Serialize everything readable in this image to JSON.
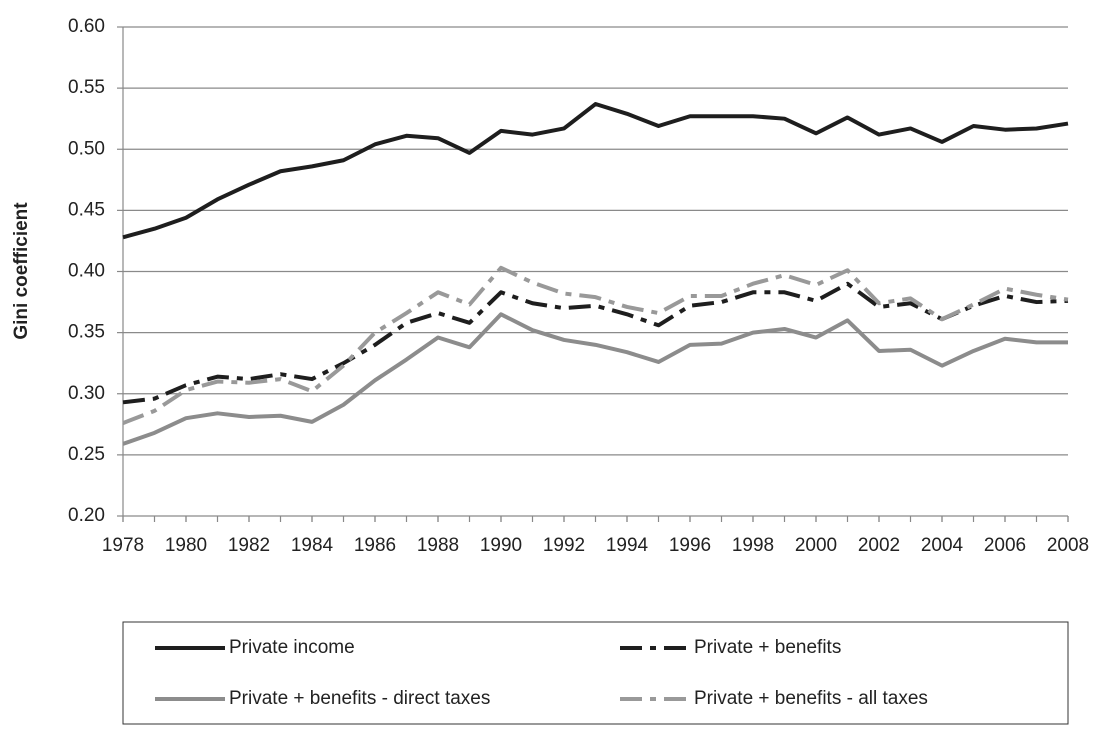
{
  "chart_data": {
    "type": "line",
    "y_label": "Gini coefficient",
    "x": [
      1978,
      1979,
      1980,
      1981,
      1982,
      1983,
      1984,
      1985,
      1986,
      1987,
      1988,
      1989,
      1990,
      1991,
      1992,
      1993,
      1994,
      1995,
      1996,
      1997,
      1998,
      1999,
      2000,
      2001,
      2002,
      2003,
      2004,
      2005,
      2006,
      2007,
      2008
    ],
    "xlim": [
      1978,
      2008
    ],
    "xticks": [
      1978,
      1980,
      1982,
      1984,
      1986,
      1988,
      1990,
      1992,
      1994,
      1996,
      1998,
      2000,
      2002,
      2004,
      2006,
      2008
    ],
    "ylim": [
      0.2,
      0.6
    ],
    "yticks": [
      {
        "value": 0.2,
        "label": "0.20"
      },
      {
        "value": 0.25,
        "label": "0.25"
      },
      {
        "value": 0.3,
        "label": "0.30"
      },
      {
        "value": 0.35,
        "label": "0.35"
      },
      {
        "value": 0.4,
        "label": "0.40"
      },
      {
        "value": 0.45,
        "label": "0.45"
      },
      {
        "value": 0.5,
        "label": "0.50"
      },
      {
        "value": 0.55,
        "label": "0.55"
      },
      {
        "value": 0.6,
        "label": "0.60"
      }
    ],
    "grid": true,
    "legend": "bottom",
    "series": [
      {
        "name": "Private income",
        "color": "#1e1e1e",
        "line_style": "solid",
        "values": [
          0.428,
          0.435,
          0.444,
          0.459,
          0.471,
          0.482,
          0.486,
          0.491,
          0.504,
          0.511,
          0.509,
          0.497,
          0.515,
          0.512,
          0.517,
          0.537,
          0.529,
          0.519,
          0.527,
          0.527,
          0.527,
          0.525,
          0.513,
          0.526,
          0.512,
          0.517,
          0.506,
          0.519,
          0.516,
          0.517,
          0.521
        ]
      },
      {
        "name": "Private + benefits",
        "color": "#1e1e1e",
        "line_style": "dashed",
        "values": [
          0.293,
          0.296,
          0.307,
          0.314,
          0.312,
          0.316,
          0.312,
          0.325,
          0.34,
          0.358,
          0.366,
          0.358,
          0.383,
          0.374,
          0.37,
          0.372,
          0.365,
          0.356,
          0.372,
          0.375,
          0.383,
          0.383,
          0.376,
          0.39,
          0.371,
          0.374,
          0.361,
          0.372,
          0.38,
          0.375,
          0.376
        ]
      },
      {
        "name": "Private + benefits - direct taxes",
        "color": "#8c8c8c",
        "line_style": "solid",
        "values": [
          0.259,
          0.268,
          0.28,
          0.284,
          0.281,
          0.282,
          0.277,
          0.291,
          0.311,
          0.328,
          0.346,
          0.338,
          0.365,
          0.352,
          0.344,
          0.34,
          0.334,
          0.326,
          0.34,
          0.341,
          0.35,
          0.353,
          0.346,
          0.36,
          0.335,
          0.336,
          0.323,
          0.335,
          0.345,
          0.342,
          0.342
        ]
      },
      {
        "name": "Private + benefits - all taxes",
        "color": "#999999",
        "line_style": "dashed",
        "values": [
          0.276,
          0.286,
          0.303,
          0.31,
          0.309,
          0.312,
          0.302,
          0.323,
          0.35,
          0.366,
          0.383,
          0.373,
          0.403,
          0.391,
          0.382,
          0.379,
          0.371,
          0.366,
          0.38,
          0.38,
          0.39,
          0.397,
          0.389,
          0.401,
          0.374,
          0.378,
          0.361,
          0.373,
          0.386,
          0.381,
          0.377
        ]
      }
    ]
  }
}
